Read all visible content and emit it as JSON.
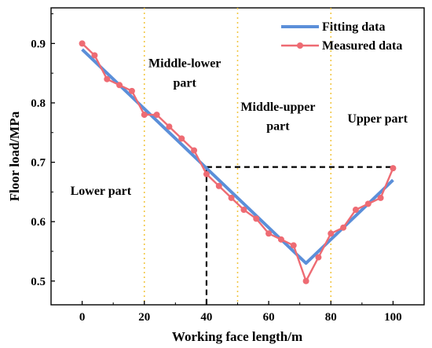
{
  "chart_data": {
    "type": "line",
    "xlabel": "Working face length/m",
    "ylabel": "Floor load/MPa",
    "xlim": [
      -10,
      110
    ],
    "ylim": [
      0.46,
      0.96
    ],
    "xticks": [
      0,
      20,
      40,
      60,
      80,
      100
    ],
    "yticks": [
      0.5,
      0.6,
      0.7,
      0.8,
      0.9
    ],
    "ytick_labels": [
      "0.5",
      "0.6",
      "0.7",
      "0.8",
      "0.9"
    ],
    "grid": false,
    "legend_position": "top-right",
    "series": [
      {
        "name": "Fitting data",
        "color": "#5b8fd9",
        "x": [
          0,
          72,
          100
        ],
        "y": [
          0.89,
          0.53,
          0.67
        ]
      },
      {
        "name": "Measured data",
        "color": "#ee6b73",
        "markers": true,
        "x": [
          0,
          4,
          8,
          12,
          16,
          20,
          24,
          28,
          32,
          36,
          40,
          44,
          48,
          52,
          56,
          60,
          64,
          68,
          72,
          76,
          80,
          84,
          88,
          92,
          96,
          100
        ],
        "y": [
          0.9,
          0.88,
          0.84,
          0.83,
          0.82,
          0.78,
          0.78,
          0.76,
          0.74,
          0.72,
          0.68,
          0.66,
          0.64,
          0.62,
          0.605,
          0.58,
          0.57,
          0.56,
          0.5,
          0.54,
          0.58,
          0.59,
          0.62,
          0.63,
          0.64,
          0.69
        ]
      }
    ],
    "region_dividers": {
      "x": [
        20,
        50,
        80
      ],
      "color": "#f2c744",
      "style": "dotted"
    },
    "reference_lines": {
      "color": "#000000",
      "style": "dashed",
      "point": [
        40,
        0.692
      ],
      "end_x": 100
    },
    "annotations": [
      {
        "text": "Middle-lower",
        "x": 33,
        "y": 0.86
      },
      {
        "text": "part",
        "x": 33,
        "y": 0.827
      },
      {
        "text": "Middle-upper",
        "x": 63,
        "y": 0.787
      },
      {
        "text": "part",
        "x": 63,
        "y": 0.754
      },
      {
        "text": "Upper part",
        "x": 95,
        "y": 0.767
      },
      {
        "text": "Lower part",
        "x": 6,
        "y": 0.645
      }
    ]
  }
}
